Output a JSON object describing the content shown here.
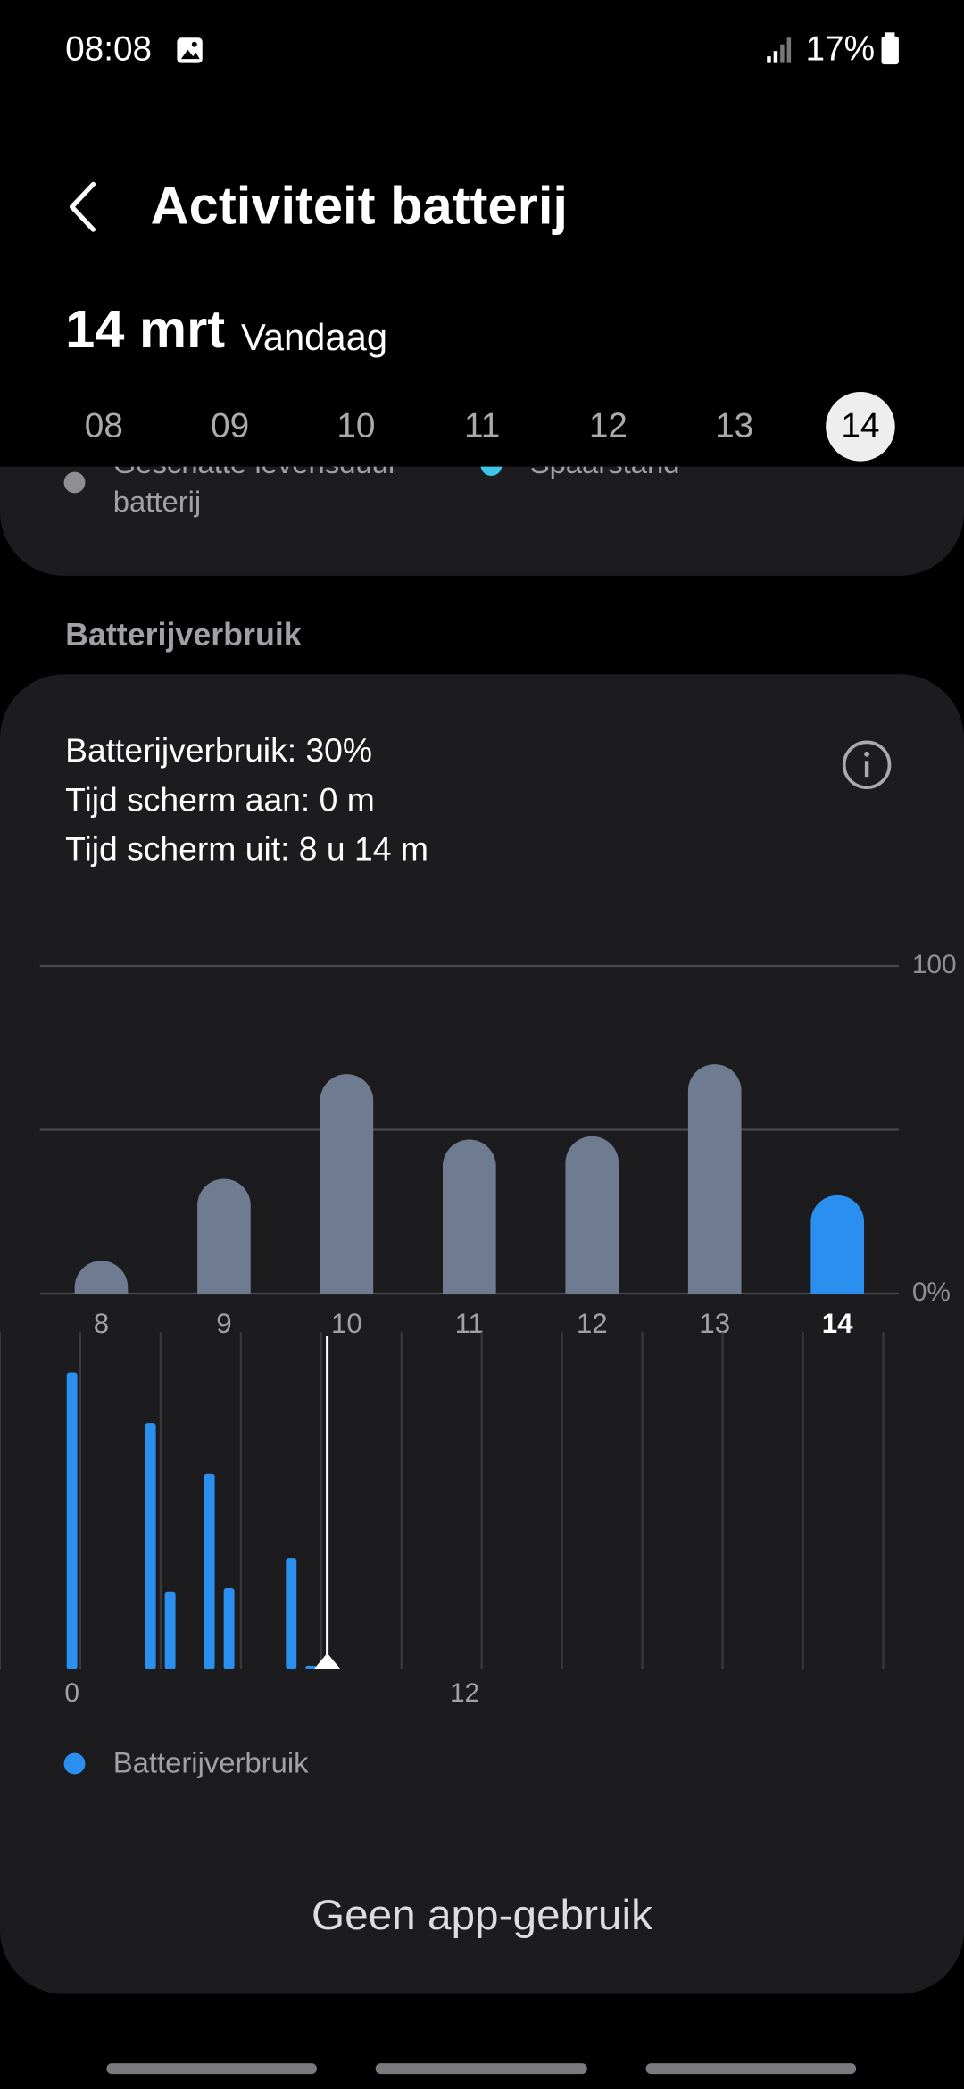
{
  "status_bar": {
    "time": "08:08",
    "battery": "17%"
  },
  "header": {
    "title": "Activiteit batterij"
  },
  "date": {
    "day": "14 mrt",
    "label": "Vandaag"
  },
  "day_selector": {
    "days": [
      "08",
      "09",
      "10",
      "11",
      "12",
      "13",
      "14"
    ],
    "selected_index": 6
  },
  "legend_top": [
    {
      "lines": [
        "Geschatte levensduur",
        "batterij"
      ],
      "color": "#8e8e93"
    },
    {
      "lines": [
        "Spaarstand"
      ],
      "color": "#3ec6e8"
    }
  ],
  "section_title": "Batterijverbruik",
  "summary": [
    "Batterijverbruik: 30%",
    "Tijd scherm aan: 0 m",
    "Tijd scherm uit: 8 u 14 m"
  ],
  "chart_data": [
    {
      "type": "bar",
      "categories": [
        "8",
        "9",
        "10",
        "11",
        "12",
        "13",
        "14"
      ],
      "values": [
        10,
        35,
        67,
        47,
        48,
        70,
        30
      ],
      "color": "#6e7b91",
      "highlight_color": "#2b8ff0",
      "highlight_index": 6,
      "ylim": [
        0,
        100
      ],
      "yticks": [
        {
          "value": 0,
          "label": "0%"
        },
        100
      ],
      "grid_values": [
        0,
        50,
        100
      ]
    },
    {
      "type": "bar",
      "x": [
        0,
        2.4,
        3.0,
        4.2,
        4.8,
        6.7,
        7.3
      ],
      "series": [
        {
          "name": "Batterijverbruik",
          "color": "#2b8ff0",
          "values": [
            8.8,
            7.3,
            2.3,
            5.8,
            2.4,
            3.3,
            0.1
          ]
        }
      ],
      "xlim": [
        -2.2,
        27.26
      ],
      "xticks": [
        0,
        12
      ],
      "ylim": [
        0,
        10
      ],
      "current_time": 7.8
    }
  ],
  "empty_message": "Geen app-gebruik"
}
